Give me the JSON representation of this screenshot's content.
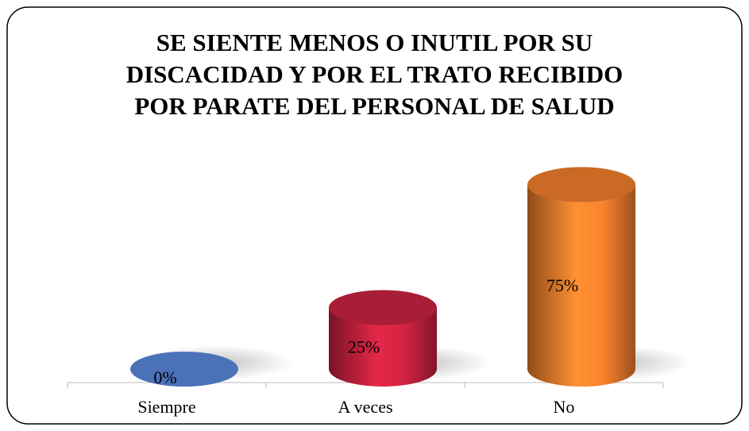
{
  "chart_data": {
    "type": "bar3d",
    "title": "SE SIENTE MENOS O INUTIL POR SU\nDISCACIDAD Y POR EL TRATO RECIBIDO\nPOR PARATE DEL PERSONAL DE SALUD",
    "categories": [
      "Siempre",
      "A veces",
      "No"
    ],
    "values": [
      0,
      25,
      75
    ],
    "value_labels": [
      "0%",
      "25%",
      "75%"
    ],
    "colors": [
      "#4a72b8",
      "#c8223f",
      "#ee7d2c"
    ]
  }
}
